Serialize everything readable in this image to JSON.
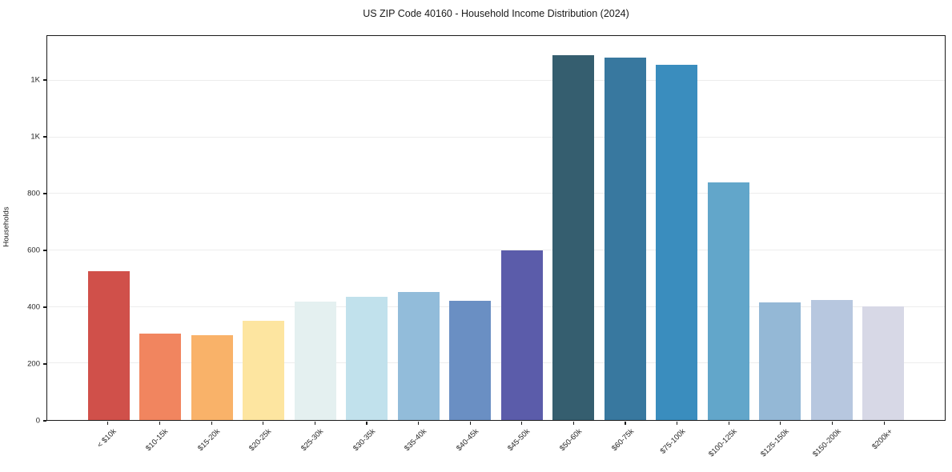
{
  "chart_data": {
    "type": "bar",
    "title": "US ZIP Code 40160 - Household Income Distribution (2024)",
    "xlabel": "",
    "ylabel": "Households",
    "categories": [
      "< $10k",
      "$10-15k",
      "$15-20k",
      "$20-25k",
      "$25-30k",
      "$30-35k",
      "$35-40k",
      "$40-45k",
      "$45-50k",
      "$50-60k",
      "$60-75k",
      "$75-100k",
      "$100-125k",
      "$125-150k",
      "$150-200k",
      "$200k+"
    ],
    "values": [
      526,
      305,
      301,
      352,
      418,
      436,
      452,
      421,
      600,
      1290,
      1281,
      1256,
      840,
      417,
      424,
      402
    ],
    "colors": [
      "#d0504a",
      "#f1855f",
      "#f9b269",
      "#fde5a0",
      "#e4f0f0",
      "#c1e1ec",
      "#92bcda",
      "#6a8fc3",
      "#5b5caa",
      "#355e6f",
      "#38789f",
      "#3a8dbe",
      "#62a6ca",
      "#94b8d6",
      "#b7c7df",
      "#d7d8e6"
    ],
    "yticks": [
      {
        "value": 0,
        "label": "0"
      },
      {
        "value": 200,
        "label": "200"
      },
      {
        "value": 400,
        "label": "400"
      },
      {
        "value": 600,
        "label": "600"
      },
      {
        "value": 800,
        "label": "800"
      },
      {
        "value": 1000,
        "label": "1K"
      },
      {
        "value": 1200,
        "label": "1K"
      }
    ],
    "ylim": [
      0,
      1358
    ],
    "grid": "horizontal",
    "legend": "none",
    "grid_color": "#ececec",
    "spine_color": "#1a1a1a",
    "background": "#ffffff"
  }
}
